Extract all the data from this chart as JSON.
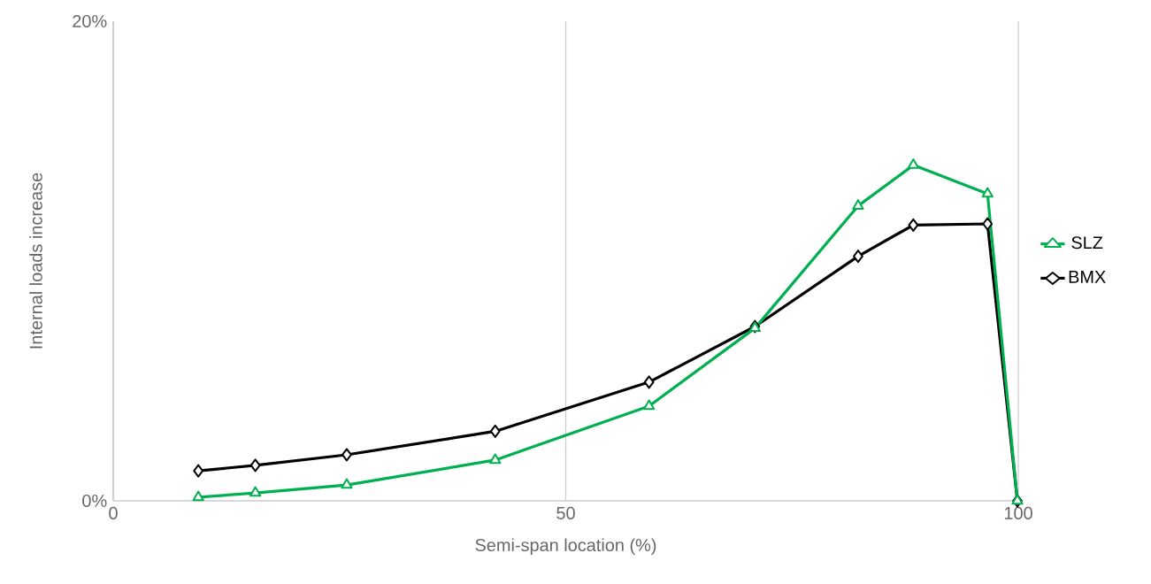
{
  "chart_data": {
    "type": "line",
    "xlabel": "Semi-span location (%)",
    "ylabel": "Internal loads increase",
    "x": [
      9.4,
      15.7,
      25.8,
      42.2,
      59.2,
      70.9,
      82.3,
      88.4,
      96.6,
      99.9
    ],
    "series": [
      {
        "name": "SLZ",
        "color": "#00b050",
        "marker": "triangle",
        "values": [
          0.15,
          0.33,
          0.66,
          1.7,
          3.95,
          7.2,
          12.3,
          14.0,
          12.8,
          0
        ]
      },
      {
        "name": "BMX",
        "color": "#000000",
        "marker": "diamond",
        "values": [
          1.25,
          1.48,
          1.92,
          2.9,
          4.95,
          7.27,
          10.2,
          11.5,
          11.55,
          0
        ]
      }
    ],
    "xlim": [
      0,
      100
    ],
    "ylim": [
      0,
      20
    ],
    "xticks": [
      0,
      50,
      100
    ],
    "yticks": [
      {
        "value": 0,
        "label": "0%"
      },
      {
        "value": 20,
        "label": "20%"
      }
    ],
    "grid": "x",
    "legend": "right",
    "line_style": "solid"
  }
}
